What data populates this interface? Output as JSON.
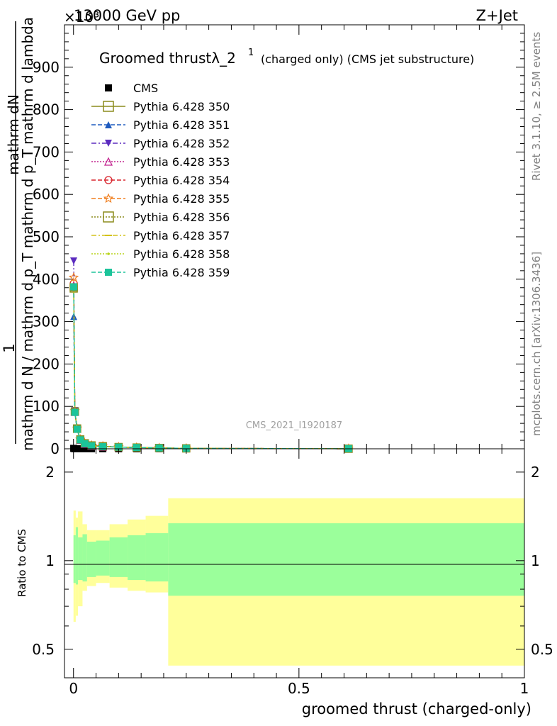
{
  "header": {
    "left": "13000 GeV pp",
    "right": "Z+Jet",
    "exponent": "×10³"
  },
  "side_labels": {
    "rivet": "Rivet 3.1.10, ≥ 2.5M events",
    "mcplots": "mcplots.cern.ch [arXiv:1306.3436]"
  },
  "watermark": "CMS_2021_I1920187",
  "chart_data": {
    "type": "line",
    "title": "Groomed thrustλ_2¹ (charged only) (CMS jet substructure)",
    "title_main": "Groomed thrustλ_2",
    "title_sup": "1",
    "title_tail": "(charged only) (CMS jet substructure)",
    "xlabel": "groomed thrust (charged-only)",
    "ylabel_top": "mathrm dN",
    "ylabel_num": "1",
    "ylabel_den1": "mathrm d N / mathrm d p_T mathrm d p_T mathrm d lambda",
    "xlim": [
      -0.02,
      1.0
    ],
    "ylim": [
      0,
      1000
    ],
    "y_exponent": 3,
    "x_ticks": [
      0,
      0.5,
      1
    ],
    "x_tick_labels": [
      "0",
      "0.5",
      "1"
    ],
    "y_ticks": [
      0,
      100,
      200,
      300,
      400,
      500,
      600,
      700,
      800,
      900
    ],
    "y_tick_labels": [
      "0",
      "100",
      "200",
      "300",
      "400",
      "500",
      "600",
      "700",
      "800",
      "900"
    ],
    "legend_position": "top-left",
    "x": [
      0.0005,
      0.003,
      0.008,
      0.015,
      0.025,
      0.04,
      0.065,
      0.1,
      0.14,
      0.19,
      0.25,
      0.61
    ],
    "series": [
      {
        "name": "CMS",
        "color": "#000000",
        "marker": "square-filled",
        "dash": "none",
        "values": [
          1,
          0,
          0,
          0,
          0,
          0,
          0,
          0,
          0,
          0,
          0,
          0
        ]
      },
      {
        "name": "Pythia 6.428 350",
        "color": "#8c8c1c",
        "marker": "square-open",
        "dash": "solid",
        "values": [
          378,
          88,
          48,
          22,
          13,
          8,
          6,
          4,
          3,
          2,
          1,
          0.2
        ]
      },
      {
        "name": "Pythia 6.428 351",
        "color": "#1f5bbf",
        "marker": "triangle-up-filled",
        "dash": "dashed",
        "values": [
          312,
          86,
          46,
          21,
          12,
          7,
          5,
          4,
          3,
          2,
          1,
          0.2
        ]
      },
      {
        "name": "Pythia 6.428 352",
        "color": "#5b2bbf",
        "marker": "triangle-down-filled",
        "dash": "dashdot",
        "values": [
          443,
          90,
          48,
          22,
          13,
          8,
          6,
          4,
          3,
          2,
          1,
          0.2
        ]
      },
      {
        "name": "Pythia 6.428 353",
        "color": "#c2248f",
        "marker": "triangle-up-open",
        "dash": "dotted",
        "values": [
          385,
          87,
          47,
          21,
          12,
          7,
          5,
          4,
          3,
          2,
          1,
          0.2
        ]
      },
      {
        "name": "Pythia 6.428 354",
        "color": "#d9232b",
        "marker": "circle-open",
        "dash": "dashed",
        "values": [
          390,
          88,
          47,
          22,
          13,
          8,
          6,
          4,
          3,
          2,
          1,
          0.2
        ]
      },
      {
        "name": "Pythia 6.428 355",
        "color": "#f07f1f",
        "marker": "star-open",
        "dash": "dashed",
        "values": [
          404,
          89,
          48,
          22,
          13,
          8,
          6,
          4,
          3,
          2,
          1,
          0.2
        ]
      },
      {
        "name": "Pythia 6.428 356",
        "color": "#8c8c1c",
        "marker": "square-open",
        "dash": "dotted",
        "values": [
          381,
          88,
          47,
          22,
          13,
          8,
          6,
          4,
          3,
          2,
          1,
          0.2
        ]
      },
      {
        "name": "Pythia 6.428 357",
        "color": "#d4c21a",
        "marker": "dash",
        "dash": "dashdot",
        "values": [
          386,
          87,
          47,
          21,
          12,
          7,
          5,
          4,
          3,
          2,
          1,
          0.2
        ]
      },
      {
        "name": "Pythia 6.428 358",
        "color": "#b8d41a",
        "marker": "dot",
        "dash": "dotted",
        "values": [
          384,
          87,
          47,
          21,
          12,
          7,
          5,
          4,
          3,
          2,
          1,
          0.2
        ]
      },
      {
        "name": "Pythia 6.428 359",
        "color": "#1cc49a",
        "marker": "square-filled",
        "dash": "dashed",
        "values": [
          382,
          86,
          46,
          21,
          12,
          7,
          5,
          4,
          3,
          2,
          1,
          0.2
        ]
      }
    ],
    "ratio": {
      "ylabel": "Ratio to CMS",
      "ylim": [
        0.4,
        2.4
      ],
      "y_ticks": [
        0.5,
        1,
        2
      ],
      "y_tick_labels": [
        "0.5",
        "1",
        "2"
      ],
      "edges": [
        0,
        0.005,
        0.01,
        0.02,
        0.03,
        0.05,
        0.08,
        0.12,
        0.16,
        0.21,
        1.0
      ],
      "inner": [
        [
          0.84,
          1.22
        ],
        [
          0.83,
          1.3
        ],
        [
          0.86,
          1.2
        ],
        [
          0.85,
          1.23
        ],
        [
          0.88,
          1.16
        ],
        [
          0.89,
          1.17
        ],
        [
          0.88,
          1.2
        ],
        [
          0.86,
          1.22
        ],
        [
          0.85,
          1.24
        ],
        [
          0.76,
          1.34
        ]
      ],
      "outer": [
        [
          0.62,
          1.48
        ],
        [
          0.65,
          1.4
        ],
        [
          0.7,
          1.47
        ],
        [
          0.79,
          1.33
        ],
        [
          0.82,
          1.27
        ],
        [
          0.84,
          1.27
        ],
        [
          0.81,
          1.33
        ],
        [
          0.79,
          1.38
        ],
        [
          0.78,
          1.42
        ],
        [
          0.44,
          1.63
        ]
      ],
      "inner_color": "#9bff9b",
      "outer_color": "#ffff9b"
    }
  }
}
